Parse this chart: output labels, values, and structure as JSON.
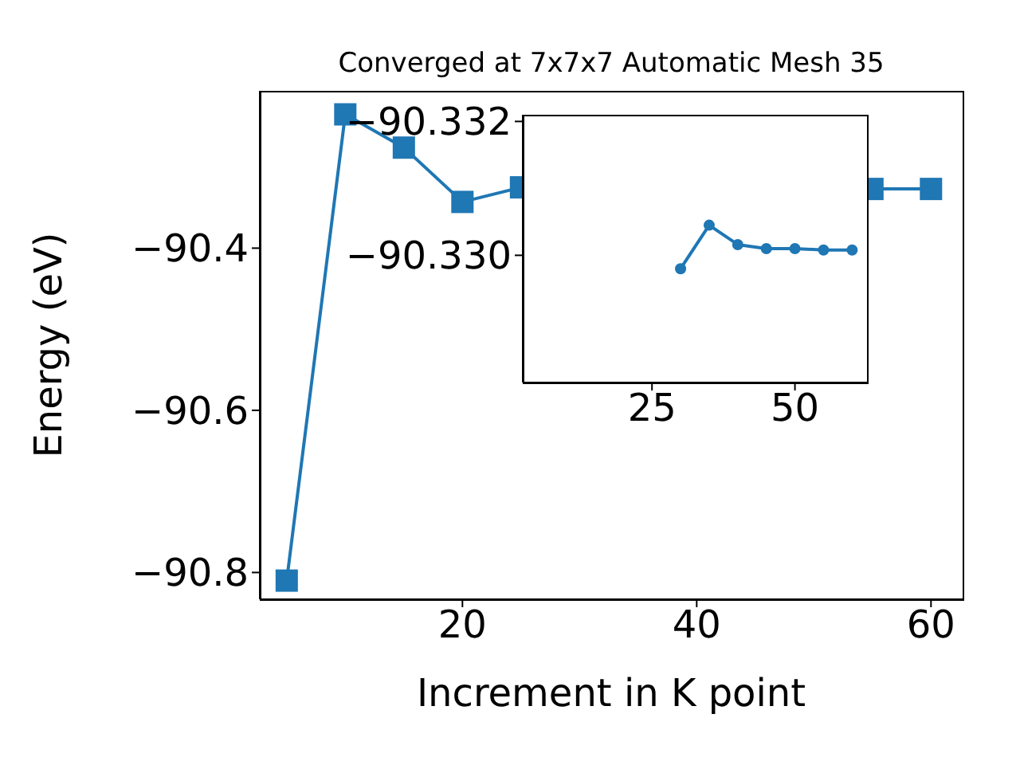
{
  "chart_data": [
    {
      "type": "line",
      "title": "Converged at 7x7x7 Automatic Mesh 35",
      "xlabel": "Increment in K point",
      "ylabel": "Energy (eV)",
      "marker": "square",
      "x": [
        5,
        10,
        15,
        20,
        25,
        30,
        35,
        40,
        45,
        50,
        55,
        60
      ],
      "series": [
        {
          "color": "#1f77b4",
          "values": [
            -90.81,
            -90.235,
            -90.276,
            -90.343,
            -90.325,
            null,
            null,
            null,
            null,
            null,
            -90.327,
            -90.327
          ]
        }
      ],
      "xlim": [
        2.7,
        62.7
      ],
      "xticks": [
        20,
        40,
        60
      ],
      "ylim": [
        -90.833,
        -90.206
      ],
      "yticks": [
        {
          "value": -90.8,
          "label": "−90.8"
        },
        {
          "value": -90.6,
          "label": "−90.6"
        },
        {
          "value": -90.4,
          "label": "−90.4"
        }
      ],
      "grid": false
    },
    {
      "type": "line",
      "marker": "circle",
      "x": [
        30,
        35,
        40,
        45,
        50,
        55,
        60
      ],
      "series": [
        {
          "color": "#1f77b4",
          "values": [
            -90.3298,
            -90.33045,
            -90.33016,
            -90.3301,
            -90.3301,
            -90.33008,
            -90.33008
          ]
        }
      ],
      "xlim": [
        2.4,
        62.6
      ],
      "xticks": [
        25,
        50
      ],
      "ylim": [
        -90.3281,
        -90.3321
      ],
      "yticks": [
        {
          "value": -90.332,
          "label": "−90.332"
        },
        {
          "value": -90.33,
          "label": "−90.330"
        }
      ],
      "grid": false
    }
  ]
}
